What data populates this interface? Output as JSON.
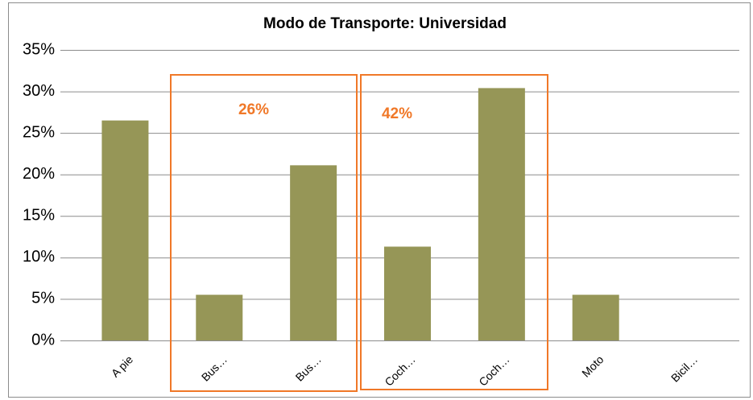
{
  "chart_data": {
    "type": "bar",
    "title": "Modo de Transporte: Universidad",
    "categories": [
      "A pie",
      "Bus…",
      "Bus…",
      "Coch…",
      "Coch…",
      "Moto",
      "Bicil…"
    ],
    "values": [
      26.5,
      5.5,
      21.1,
      11.3,
      30.4,
      5.5,
      0
    ],
    "color": "#969657",
    "ylim": [
      0,
      35
    ],
    "yticks": [
      {
        "value": 0,
        "label": "0%"
      },
      {
        "value": 5,
        "label": "5%"
      },
      {
        "value": 10,
        "label": "10%"
      },
      {
        "value": 15,
        "label": "15%"
      },
      {
        "value": 20,
        "label": "20%"
      },
      {
        "value": 25,
        "label": "25%"
      },
      {
        "value": 30,
        "label": "30%"
      },
      {
        "value": 35,
        "label": "35%"
      }
    ],
    "grid": true,
    "annotations": [
      {
        "text": "26%",
        "color": "#f07828"
      },
      {
        "text": "42%",
        "color": "#f07828"
      }
    ]
  }
}
